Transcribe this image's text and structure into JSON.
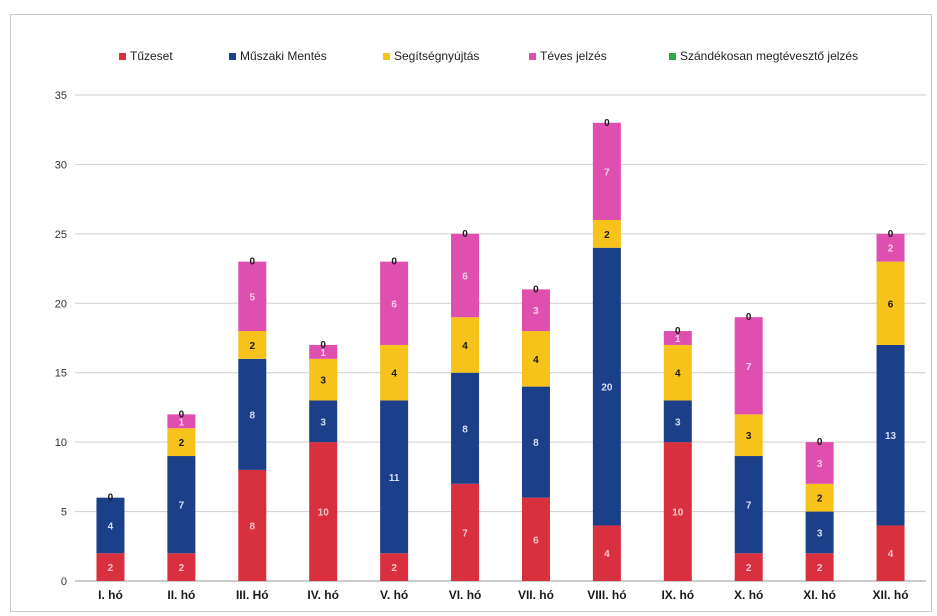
{
  "chart_data": {
    "type": "bar",
    "stacked": true,
    "title": "",
    "xlabel": "",
    "ylabel": "",
    "ylim": [
      0,
      35
    ],
    "yticks": [
      0,
      5,
      10,
      15,
      20,
      25,
      30,
      35
    ],
    "grid": true,
    "legend_position": "top",
    "categories": [
      "I. hó",
      "II. hó",
      "III.  Hó",
      "IV. hó",
      "V. hó",
      "VI. hó",
      "VII. hó",
      "VIII. hó",
      "IX. hó",
      "X. hó",
      "XI. hó",
      "XII. hó"
    ],
    "series": [
      {
        "name": "Tűzeset",
        "color": "#d8303f",
        "label_color": "#f3c7cc",
        "values": [
          2,
          2,
          8,
          10,
          2,
          7,
          6,
          4,
          10,
          2,
          2,
          4
        ]
      },
      {
        "name": "Műszaki Mentés",
        "color": "#1c3f8a",
        "label_color": "#d5def2",
        "values": [
          4,
          7,
          8,
          3,
          11,
          8,
          8,
          20,
          3,
          7,
          3,
          13
        ]
      },
      {
        "name": "Segítségnyújtás",
        "color": "#f7c21a",
        "label_color": "#1a1a1a",
        "values": [
          0,
          2,
          2,
          3,
          4,
          4,
          4,
          2,
          4,
          3,
          2,
          6
        ]
      },
      {
        "name": "Téves jelzés",
        "color": "#df4fb0",
        "label_color": "#f6d0ea",
        "values": [
          0,
          1,
          5,
          1,
          6,
          6,
          3,
          7,
          1,
          7,
          3,
          2
        ]
      },
      {
        "name": "Szándékosan megtévesztő jelzés",
        "color": "#2ea84a",
        "label_color": "#1a1a1a",
        "values": [
          0,
          0,
          0,
          0,
          0,
          0,
          0,
          0,
          0,
          0,
          0,
          0
        ]
      }
    ]
  }
}
